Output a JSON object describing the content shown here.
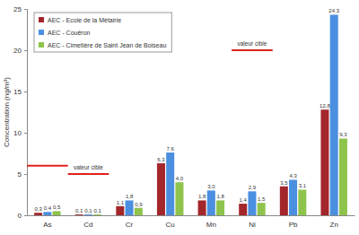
{
  "chart_data": {
    "type": "bar",
    "y_label": "Concentration (ng/m³)",
    "categories": [
      "As",
      "Cd",
      "Cr",
      "Cu",
      "Mn",
      "Ni",
      "Pb",
      "Zn"
    ],
    "series": [
      {
        "name": "AEC - Ecole de la Métairie",
        "color": "#a3262b",
        "values": [
          0.3,
          0.1,
          1.1,
          6.3,
          1.8,
          1.4,
          3.5,
          12.8
        ],
        "value_labels": [
          "0,3",
          "0,1",
          "1,1",
          "6,3",
          "1,8",
          "1,4",
          "3,5",
          "12,8"
        ]
      },
      {
        "name": "AEC - Couëron",
        "color": "#4a8fe0",
        "values": [
          0.4,
          0.1,
          1.8,
          7.6,
          3.0,
          2.9,
          4.3,
          24.3
        ],
        "value_labels": [
          "0,4",
          "0,1",
          "1,8",
          "7,6",
          "3,0",
          "2,9",
          "4,3",
          "24,3"
        ]
      },
      {
        "name": "AEC - Cimetière de Saint Jean de Boiseau",
        "color": "#8fc44c",
        "values": [
          0.5,
          0.1,
          0.9,
          4.0,
          1.8,
          1.5,
          3.1,
          9.3
        ],
        "value_labels": [
          "0,5",
          "0,1",
          "0,9",
          "4,0",
          "1,8",
          "1,5",
          "3,1",
          "9,3"
        ]
      }
    ],
    "annotations": [
      {
        "category": "As",
        "value": 6
      },
      {
        "category": "Cd",
        "value": 5,
        "text": "valeur cible"
      },
      {
        "category": "Ni",
        "value": 20,
        "text": "valeur cible"
      }
    ],
    "ylim": [
      0,
      25
    ],
    "yticks": [
      0,
      5,
      10,
      15,
      20,
      25
    ],
    "grid": false,
    "legend": "upper left",
    "data_labels": true
  }
}
